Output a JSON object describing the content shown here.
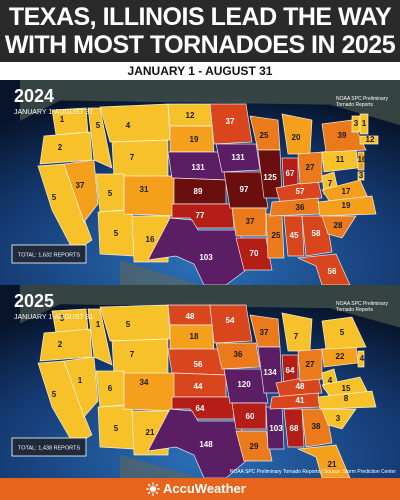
{
  "headline": {
    "line1": "TEXAS, ILLINOIS LEAD THE WAY",
    "line2": "WITH MOST TORNADOES IN 2025"
  },
  "date_range": "JANUARY 1 - AUGUST 31",
  "colors": {
    "low": "#f7c12a",
    "mid_low": "#f4a01c",
    "mid": "#ea7a1c",
    "high": "#d9451c",
    "very_high": "#b51e16",
    "extreme": "#6b0e0e",
    "top": "#5b1d63",
    "ocean": "#0b1a33",
    "brand_orange": "#e8641c"
  },
  "maps": [
    {
      "year": "2024",
      "subtitle": "JANUARY 1-AUGUST 31",
      "source_note_line1": "NOAA SPC Preliminary",
      "source_note_line2": "Tornado Reports",
      "total": "TOTAL: 1,632 REPORTS",
      "state_values": {
        "WA": "1",
        "MT": "4",
        "ND": "12",
        "MN": "37",
        "OR": "2",
        "ID": "5",
        "WY": "7",
        "SD": "19",
        "WI": "25",
        "NV": "37",
        "CA": "5",
        "UT": "5",
        "CO": "31",
        "NE": "131",
        "IA": "131",
        "AZ": "5",
        "NM": "16",
        "KS": "89",
        "MO": "97",
        "IL": "125",
        "OK": "77",
        "AR": "37",
        "TX": "103",
        "LA": "70",
        "MS": "25",
        "AL": "45",
        "GA": "58",
        "IN": "67",
        "OH": "27",
        "KY": "57",
        "TN": "36",
        "WV": "7",
        "VA": "17",
        "NC": "19",
        "SC": "28",
        "FL": "56",
        "MI": "20",
        "PA": "11",
        "NY": "39",
        "VT": "3",
        "NH": "1",
        "MA": "12",
        "NJ": "16",
        "DE": "3"
      }
    },
    {
      "year": "2025",
      "subtitle": "JANUARY 1-AUGUST 31",
      "source_note_line1": "NOAA SPC Preliminary",
      "source_note_line2": "Tornado Reports",
      "total": "TOTAL: 1,438 REPORTS",
      "credit": "NOAA SPC Preliminary Tornado Reports | Source: Storm Prediction Center",
      "state_values": {
        "WA": "3",
        "MT": "5",
        "ND": "48",
        "MN": "54",
        "OR": "2",
        "ID": "1",
        "WY": "7",
        "SD": "18",
        "WI": "37",
        "NV": "1",
        "CA": "5",
        "UT": "6",
        "CO": "34",
        "NE": "56",
        "IA": "36",
        "AZ": "5",
        "NM": "21",
        "KS": "44",
        "MO": "120",
        "IL": "134",
        "OK": "64",
        "AR": "60",
        "TX": "148",
        "LA": "29",
        "MS": "103",
        "AL": "68",
        "GA": "38",
        "IN": "64",
        "OH": "27",
        "KY": "48",
        "TN": "41",
        "VA": "15",
        "NC": "8",
        "SC": "3",
        "FL": "21",
        "MI": "7",
        "PA": "22",
        "NY": "5",
        "NJ": "4",
        "WV": "4"
      }
    }
  ],
  "footer": {
    "brand": "AccuWeather"
  }
}
